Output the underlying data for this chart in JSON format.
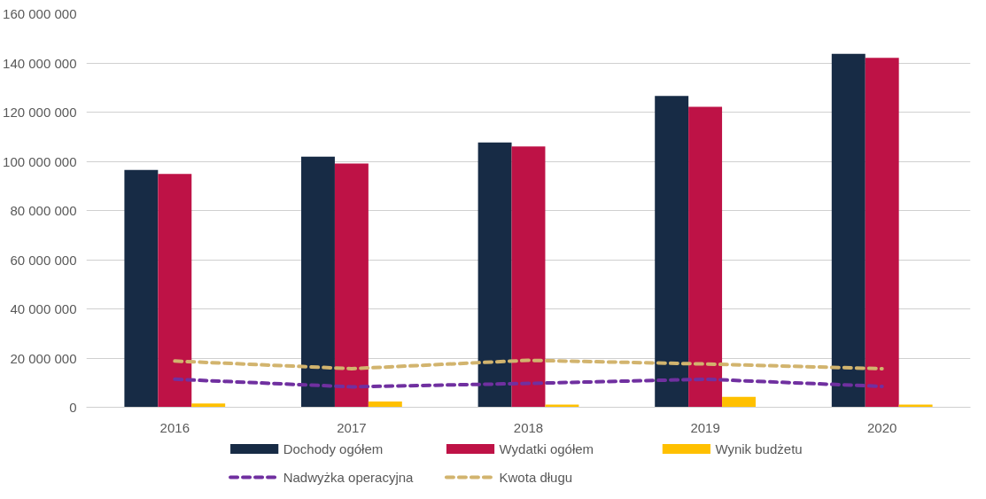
{
  "chart_data": {
    "type": "bar",
    "categories": [
      "2016",
      "2017",
      "2018",
      "2019",
      "2020"
    ],
    "series": [
      {
        "name": "Dochody ogółem",
        "color": "#172b45",
        "values": [
          96500000,
          101900000,
          107700000,
          126600000,
          143700000
        ]
      },
      {
        "name": "Wydatki ogółem",
        "color": "#be1246",
        "values": [
          94900000,
          99100000,
          106000000,
          122200000,
          142100000
        ]
      },
      {
        "name": "Wynik budżetu",
        "color": "#ffc000",
        "values": [
          1500000,
          2300000,
          1100000,
          4200000,
          1100000
        ]
      },
      {
        "name": "Nadwyżka operacyjna",
        "type": "line",
        "color": "#7030a0",
        "line_style": "dashed",
        "values": [
          11400000,
          8300000,
          9700000,
          11400000,
          8500000
        ]
      },
      {
        "name": "Kwota długu",
        "type": "line",
        "color": "#d2b46e",
        "line_style": "dashed",
        "values": [
          18800000,
          15700000,
          19100000,
          17600000,
          15700000
        ]
      }
    ],
    "ylim": [
      0,
      160000000
    ],
    "yticks": [
      {
        "value": 0,
        "label": "0"
      },
      {
        "value": 20000000,
        "label": "20 000 000"
      },
      {
        "value": 40000000,
        "label": "40 000 000"
      },
      {
        "value": 60000000,
        "label": "60 000 000"
      },
      {
        "value": 80000000,
        "label": "80 000 000"
      },
      {
        "value": 100000000,
        "label": "100 000 000"
      },
      {
        "value": 120000000,
        "label": "120 000 000"
      },
      {
        "value": 140000000,
        "label": "140 000 000"
      },
      {
        "value": 160000000,
        "label": "160 000 000"
      }
    ],
    "grid": "y",
    "legend": "bottom"
  }
}
